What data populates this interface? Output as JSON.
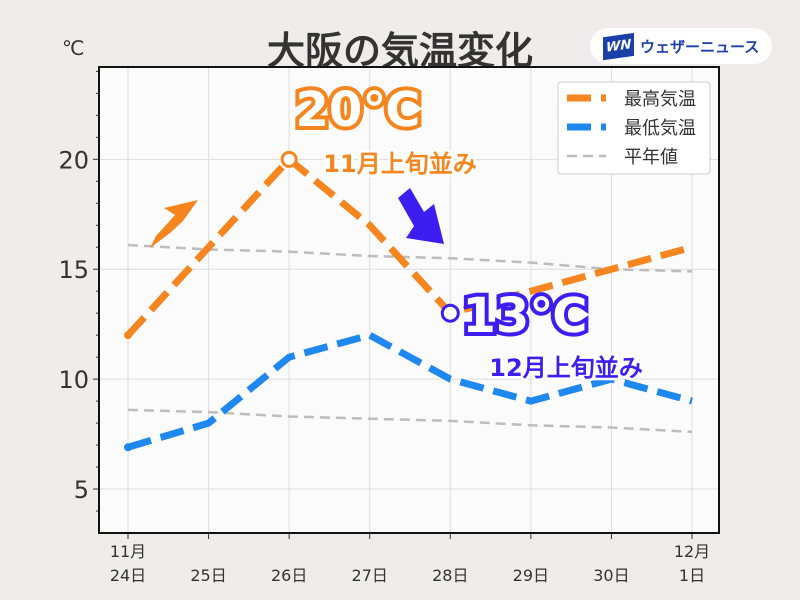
{
  "title": "大阪の気温変化",
  "unit": "℃",
  "logo": {
    "mark": "WN",
    "text": "ウェザーニュース"
  },
  "annotations": {
    "high_value": "20℃",
    "high_note": "11月上旬並み",
    "low_value": "13℃",
    "low_note": "12月上旬並み"
  },
  "chart_data": {
    "type": "line",
    "title": "大阪の気温変化",
    "ylabel": "℃",
    "x_labels": [
      [
        "11月",
        "24日"
      ],
      [
        "",
        "25日"
      ],
      [
        "",
        "26日"
      ],
      [
        "",
        "27日"
      ],
      [
        "",
        "28日"
      ],
      [
        "",
        "29日"
      ],
      [
        "",
        "30日"
      ],
      [
        "12月",
        "1日"
      ]
    ],
    "yticks": [
      5,
      10,
      15,
      20
    ],
    "ylim": [
      3,
      24.2
    ],
    "grid": true,
    "legend_position": "top-right",
    "series": [
      {
        "name": "最高気温",
        "color": "#f5861f",
        "values": [
          12,
          16,
          20,
          17,
          13,
          14,
          15,
          16
        ],
        "style": "thick-dash"
      },
      {
        "name": "最低気温",
        "color": "#1e88ee",
        "values": [
          6.9,
          8,
          11,
          12,
          10,
          9,
          10,
          9
        ],
        "style": "thick-dash"
      },
      {
        "name": "平年値",
        "color": "#bdbdbd",
        "values": [
          16.1,
          15.9,
          15.8,
          15.6,
          15.5,
          15.3,
          15.0,
          14.9
        ],
        "style": "thin-dash"
      },
      {
        "name": "平年値",
        "color": "#bdbdbd",
        "values": [
          8.6,
          8.5,
          8.3,
          8.2,
          8.1,
          7.9,
          7.8,
          7.6
        ],
        "style": "thin-dash",
        "legend": false
      }
    ]
  }
}
